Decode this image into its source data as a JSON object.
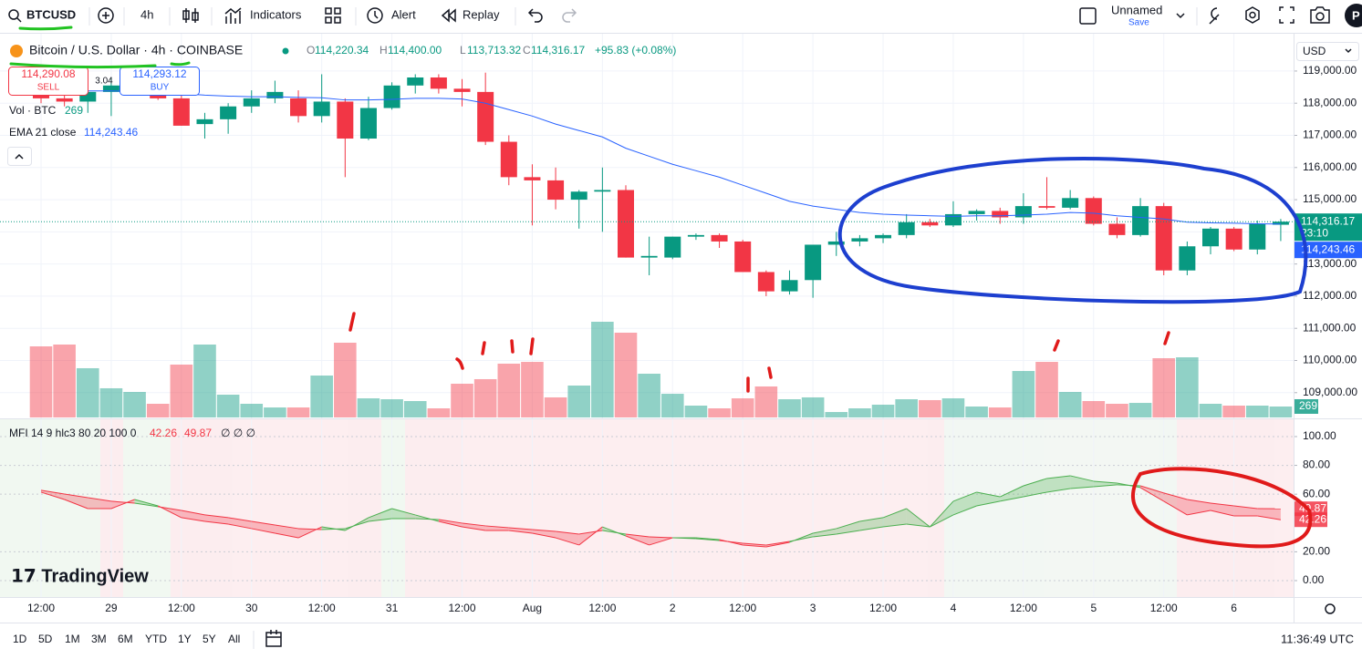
{
  "toolbar": {
    "symbol": "BTCUSD",
    "interval": "4h",
    "indicators": "Indicators",
    "alert": "Alert",
    "replay": "Replay",
    "layout_name": "Unnamed",
    "save": "Save",
    "currency": "USD"
  },
  "legend": {
    "title": "Bitcoin / U.S. Dollar · 4h · COINBASE",
    "o_label": "O",
    "open": "114,220.34",
    "h_label": "H",
    "high": "114,400.00",
    "l_label": "L",
    "low": "113,713.32",
    "c_label": "C",
    "close": "114,316.17",
    "change": "+95.83 (+0.08%)",
    "sell_price": "114,290.08",
    "sell": "SELL",
    "spread": "3.04",
    "buy_price": "114,293.12",
    "buy": "BUY",
    "volume_label": "Vol · BTC",
    "volume_value": "269",
    "ema_label": "EMA 21 close",
    "ema_value": "114,243.46",
    "countdown": "23:10",
    "mfi_label": "MFI 14 9 hlc3 80 20 100 0",
    "mfi_value_1": "42.26",
    "mfi_value_2": "49.87",
    "mfi_extra": "∅ ∅ ∅"
  },
  "chart_data": [
    {
      "type": "candlestick",
      "up_color": "#089981",
      "down_color": "#f23645",
      "grid": true,
      "categories": [
        "12:00",
        null,
        null,
        "29",
        null,
        null,
        "12:00",
        null,
        null,
        "30",
        null,
        null,
        "12:00",
        null,
        null,
        "31",
        null,
        null,
        "12:00",
        null,
        null,
        "Aug",
        null,
        null,
        "12:00",
        null,
        null,
        "2",
        null,
        null,
        "12:00",
        null,
        null,
        "3",
        null,
        null,
        "12:00",
        null,
        null,
        "4",
        null,
        null,
        "12:00",
        null,
        null,
        "5",
        null,
        null,
        "12:00",
        null,
        null,
        "6",
        null,
        null
      ],
      "open": [
        118300,
        118150,
        118050,
        118350,
        118550,
        118650,
        118150,
        117350,
        117500,
        117900,
        118150,
        118150,
        117600,
        118050,
        116900,
        117850,
        118550,
        118800,
        118450,
        118350,
        116800,
        115700,
        115600,
        115000,
        115250,
        115300,
        113200,
        113200,
        113850,
        113900,
        113700,
        112750,
        112150,
        112500,
        113600,
        113700,
        113800,
        113900,
        114300,
        114200,
        114550,
        114650,
        114450,
        114800,
        114750,
        115050,
        114250,
        113900,
        114800,
        112800,
        113550,
        114100,
        113450,
        114220.34
      ],
      "high": [
        118600,
        118400,
        118500,
        118800,
        118800,
        118900,
        118300,
        117700,
        118000,
        118400,
        118700,
        118400,
        118900,
        118150,
        118200,
        118650,
        118900,
        118900,
        118750,
        118950,
        117000,
        116100,
        116000,
        115300,
        116000,
        115450,
        113850,
        113850,
        113950,
        113950,
        113750,
        112800,
        112800,
        113550,
        114000,
        113900,
        113950,
        114550,
        114400,
        114950,
        114700,
        114750,
        115200,
        115700,
        115300,
        115100,
        114450,
        115050,
        114900,
        113700,
        114150,
        114150,
        114350,
        114400
      ],
      "low": [
        118000,
        117900,
        117700,
        117600,
        118300,
        118100,
        117300,
        116900,
        117050,
        117700,
        118000,
        117400,
        117400,
        115700,
        116850,
        117800,
        118300,
        118300,
        117900,
        116700,
        115450,
        114200,
        114700,
        114100,
        114000,
        113200,
        112650,
        113150,
        113750,
        113500,
        112750,
        112000,
        112050,
        111950,
        113250,
        113550,
        113650,
        113800,
        114150,
        114150,
        114350,
        114250,
        114250,
        114700,
        114700,
        114200,
        113800,
        113850,
        112650,
        112650,
        113300,
        113400,
        113300,
        113713.32
      ],
      "close": [
        118150,
        118050,
        118350,
        118550,
        118650,
        118150,
        117300,
        117500,
        117900,
        118150,
        118350,
        117600,
        118050,
        116900,
        117850,
        118550,
        118800,
        118450,
        118350,
        116800,
        115700,
        115600,
        115000,
        115250,
        115300,
        113200,
        113250,
        113850,
        113900,
        113700,
        112750,
        112150,
        112500,
        113600,
        113700,
        113800,
        113900,
        114300,
        114200,
        114550,
        114650,
        114450,
        114800,
        114750,
        115050,
        114250,
        113900,
        114800,
        112800,
        113550,
        114100,
        113450,
        114250,
        114316.17
      ],
      "volume": {
        "values": [
          1747,
          1792,
          1210,
          717,
          627,
          336,
          1299,
          1792,
          560,
          336,
          246,
          246,
          1030,
          1837,
          470,
          448,
          403,
          224,
          829,
          941,
          1322,
          1366,
          493,
          784,
          2352,
          2083,
          1075,
          582,
          291,
          224,
          470,
          762,
          448,
          493,
          134,
          224,
          314,
          448,
          426,
          470,
          269,
          246,
          1142,
          1366,
          627,
          403,
          336,
          358,
          1456,
          1478,
          336,
          291,
          291,
          269
        ]
      },
      "ema": {
        "color": "#2962ff",
        "values": [
          118400,
          118400,
          118380,
          118380,
          118370,
          118350,
          118300,
          118250,
          118220,
          118200,
          118200,
          118180,
          118170,
          118100,
          118100,
          118120,
          118150,
          118150,
          118130,
          118000,
          117800,
          117600,
          117350,
          117150,
          116950,
          116600,
          116350,
          116100,
          115900,
          115700,
          115450,
          115200,
          114950,
          114800,
          114700,
          114600,
          114550,
          114520,
          114500,
          114480,
          114500,
          114500,
          114520,
          114550,
          114600,
          114580,
          114500,
          114450,
          114400,
          114300,
          114280,
          114270,
          114250,
          114243.46
        ]
      },
      "ylim": [
        108200,
        120160
      ],
      "yticks": [
        {
          "value": 119000,
          "label": "119,000.00"
        },
        {
          "value": 118000,
          "label": "118,000.00"
        },
        {
          "value": 117000,
          "label": "117,000.00"
        },
        {
          "value": 116000,
          "label": "116,000.00"
        },
        {
          "value": 115000,
          "label": "115,000.00"
        },
        {
          "value": 114000,
          "label": "114,000.00"
        },
        {
          "value": 113000,
          "label": "113,000.00"
        },
        {
          "value": 112000,
          "label": "112,000.00"
        },
        {
          "value": 111000,
          "label": "111,000.00"
        },
        {
          "value": 110000,
          "label": "110,000.00"
        },
        {
          "value": 109000,
          "label": "109,000.00"
        }
      ]
    },
    {
      "type": "line",
      "up_color": "#4caf50",
      "down_color": "#f23645",
      "series": [
        {
          "values": [
            61.4,
            56.3,
            50.0,
            50.0,
            56.3,
            51.9,
            43.7,
            41.1,
            39.2,
            36.1,
            32.9,
            29.7,
            37.3,
            34.8,
            43.7,
            50.0,
            45.6,
            41.1,
            37.3,
            34.8,
            34.8,
            32.9,
            29.7,
            24.7,
            37.3,
            31.0,
            24.7,
            29.7,
            29.7,
            28.5,
            24.7,
            23.4,
            26.6,
            32.9,
            36.1,
            41.1,
            43.7,
            50.0,
            37.3,
            55.1,
            61.4,
            58.2,
            65.8,
            70.9,
            72.8,
            69.0,
            67.7,
            64.6,
            55.1,
            45.6,
            48.7,
            44.9,
            44.9,
            42.26
          ]
        },
        {
          "values": [
            62.7,
            60.1,
            57.6,
            55.1,
            53.8,
            51.3,
            48.7,
            45.6,
            43.7,
            41.1,
            38.6,
            36.1,
            35.4,
            36.1,
            41.1,
            43.0,
            43.0,
            42.4,
            39.9,
            38.0,
            36.7,
            35.4,
            34.2,
            32.3,
            34.8,
            32.3,
            30.4,
            29.7,
            29.1,
            27.8,
            25.9,
            24.7,
            27.2,
            30.4,
            32.3,
            34.8,
            37.3,
            39.2,
            37.3,
            45.6,
            51.9,
            55.1,
            58.2,
            61.4,
            63.9,
            65.2,
            66.5,
            65.8,
            60.8,
            56.3,
            53.8,
            51.9,
            50.0,
            49.87
          ]
        }
      ],
      "ylim": [
        -11.4,
        112
      ],
      "yticks": [
        {
          "value": 100,
          "label": "100.00"
        },
        {
          "value": 80,
          "label": "80.00"
        },
        {
          "value": 60,
          "label": "60.00"
        },
        {
          "value": 20,
          "label": "20.00"
        },
        {
          "value": 0,
          "label": "0.00"
        }
      ]
    }
  ],
  "footer": {
    "ranges": [
      "1D",
      "5D",
      "1M",
      "3M",
      "6M",
      "YTD",
      "1Y",
      "5Y",
      "All"
    ],
    "clock": "11:36:49 UTC"
  }
}
